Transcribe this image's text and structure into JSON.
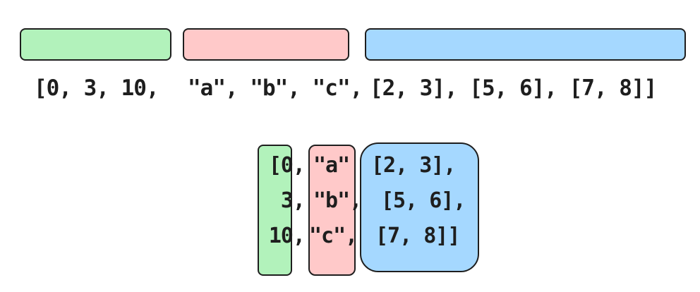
{
  "colors": {
    "ints": "#b2f2bb",
    "strings": "#ffc9c9",
    "pairs": "#a5d8ff",
    "stroke": "#1e1e1e"
  },
  "flat": {
    "ints_text": "[0, 3, 10,",
    "strings_text": "\"a\", \"b\", \"c\",",
    "pairs_text": "[2, 3], [5, 6], [7, 8]]"
  },
  "columns": {
    "ints": [
      "[0,",
      "3,",
      "10,"
    ],
    "strings": [
      "\"a\"",
      "\"b\",",
      "\"c\","
    ],
    "pairs": [
      "[2, 3],",
      "[5, 6],",
      "[7, 8]]"
    ]
  }
}
